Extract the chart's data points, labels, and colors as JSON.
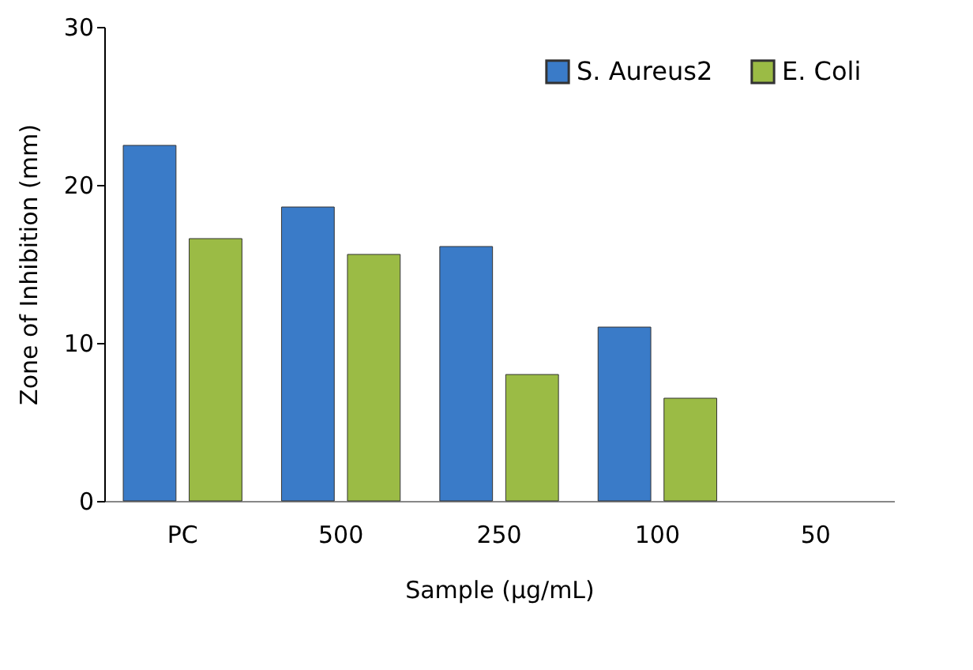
{
  "chart_data": {
    "type": "bar",
    "xlabel": "Sample (µg/mL)",
    "ylabel": "Zone of Inhibition (mm)",
    "categories": [
      "PC",
      "500",
      "250",
      "100",
      "50"
    ],
    "series": [
      {
        "name": "S. Aureus2",
        "color": "#3a7bc8",
        "values": [
          22.5,
          18.6,
          16.1,
          11.0,
          null
        ]
      },
      {
        "name": "E. Coli",
        "color": "#9bbb45",
        "values": [
          16.6,
          15.6,
          8.0,
          6.5,
          null
        ]
      }
    ],
    "ylim": [
      0,
      30
    ],
    "yticks": [
      0,
      10,
      20,
      30
    ],
    "grid": false,
    "legend": "top right"
  }
}
